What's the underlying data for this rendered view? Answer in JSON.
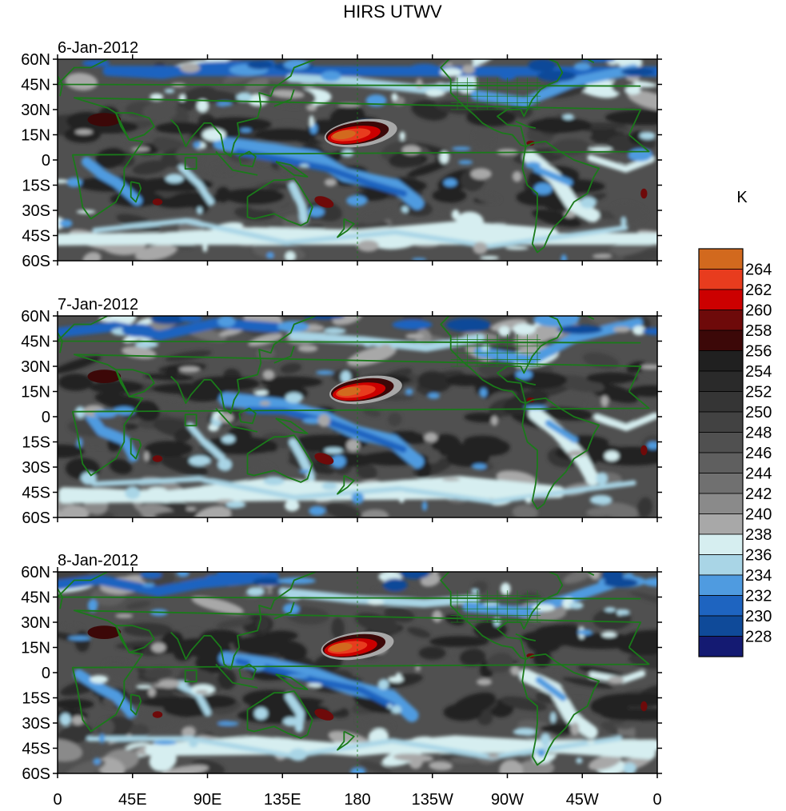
{
  "figure": {
    "title": "HIRS UTWV",
    "units_label": "K"
  },
  "panels": [
    {
      "date": "6-Jan-2012"
    },
    {
      "date": "7-Jan-2012"
    },
    {
      "date": "8-Jan-2012"
    }
  ],
  "lat_labels": [
    "60N",
    "45N",
    "30N",
    "15N",
    "0",
    "15S",
    "30S",
    "45S",
    "60S"
  ],
  "lon_labels": [
    "0",
    "45E",
    "90E",
    "135E",
    "180",
    "135W",
    "90W",
    "45W",
    "0"
  ],
  "colorbar": {
    "labels": [
      "264",
      "262",
      "260",
      "258",
      "256",
      "254",
      "252",
      "250",
      "248",
      "246",
      "244",
      "242",
      "240",
      "238",
      "236",
      "234",
      "232",
      "230",
      "228"
    ],
    "colors": [
      "#d2691e",
      "#e83c1e",
      "#cc0000",
      "#6e0a0a",
      "#3c0808",
      "#202020",
      "#2a2a2a",
      "#353535",
      "#424242",
      "#505050",
      "#5f5f5f",
      "#707070",
      "#8a8a8a",
      "#a8a8a8",
      "#d6eef0",
      "#a9d5e6",
      "#4f9be0",
      "#1e64c0",
      "#0f4a99",
      "#141a72"
    ]
  },
  "colors": {
    "coastline": "#1a7a1a"
  }
}
